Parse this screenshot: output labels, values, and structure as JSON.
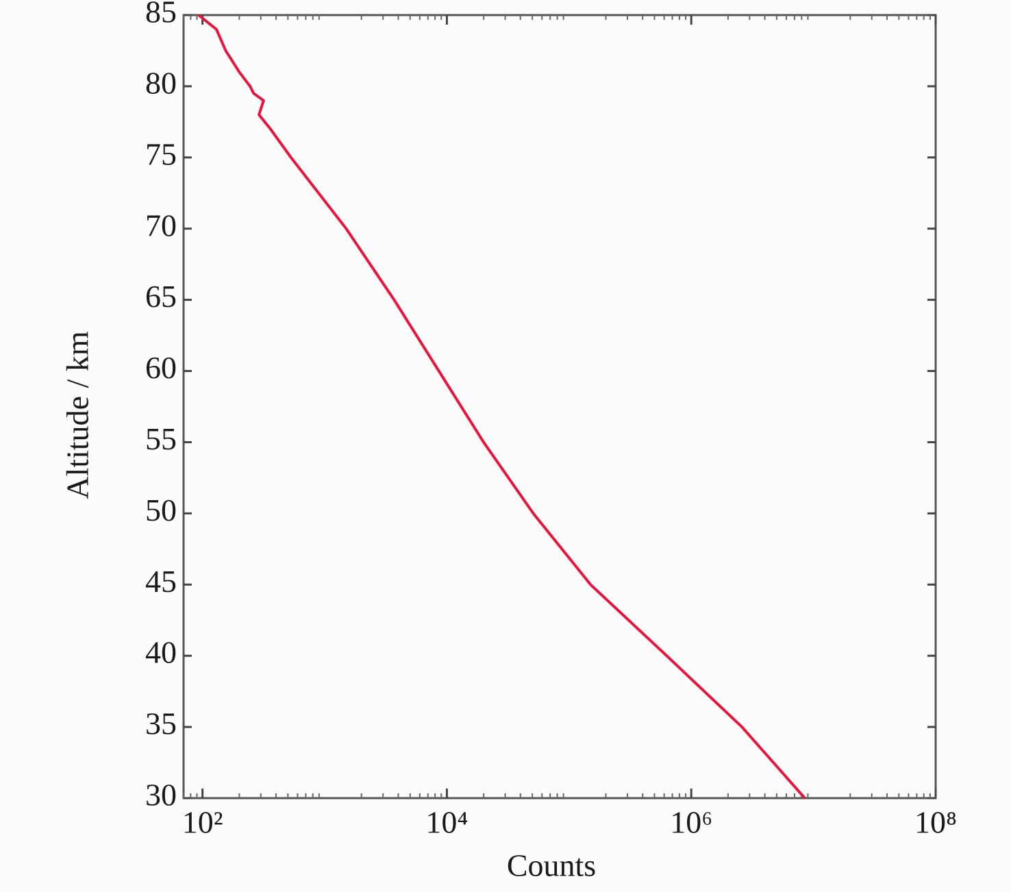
{
  "chart_data": {
    "type": "line",
    "x_label": "Counts",
    "y_label": "Altitude / km",
    "x_log": true,
    "x": [
      93,
      130,
      155,
      200,
      245,
      262,
      316,
      290,
      360,
      530,
      1500,
      3700,
      8600,
      20000,
      51000,
      150000,
      630000,
      2600000,
      8500000
    ],
    "series": [
      {
        "name": "Counts",
        "color": "#e8143c",
        "values": [
          85,
          84,
          82.5,
          81,
          80,
          79.5,
          79,
          78,
          77,
          75,
          70,
          65,
          60,
          55,
          50,
          45,
          40,
          35,
          30
        ]
      }
    ],
    "xlim": [
      70,
      100000000
    ],
    "xticks": [
      {
        "value": 100,
        "label": "10²"
      },
      {
        "value": 10000,
        "label": "10⁴"
      },
      {
        "value": 1000000,
        "label": "10⁶"
      },
      {
        "value": 100000000,
        "label": "10⁸"
      }
    ],
    "ylim": [
      30,
      85
    ],
    "yticks": [
      30,
      35,
      40,
      45,
      50,
      55,
      60,
      65,
      70,
      75,
      80,
      85
    ]
  }
}
